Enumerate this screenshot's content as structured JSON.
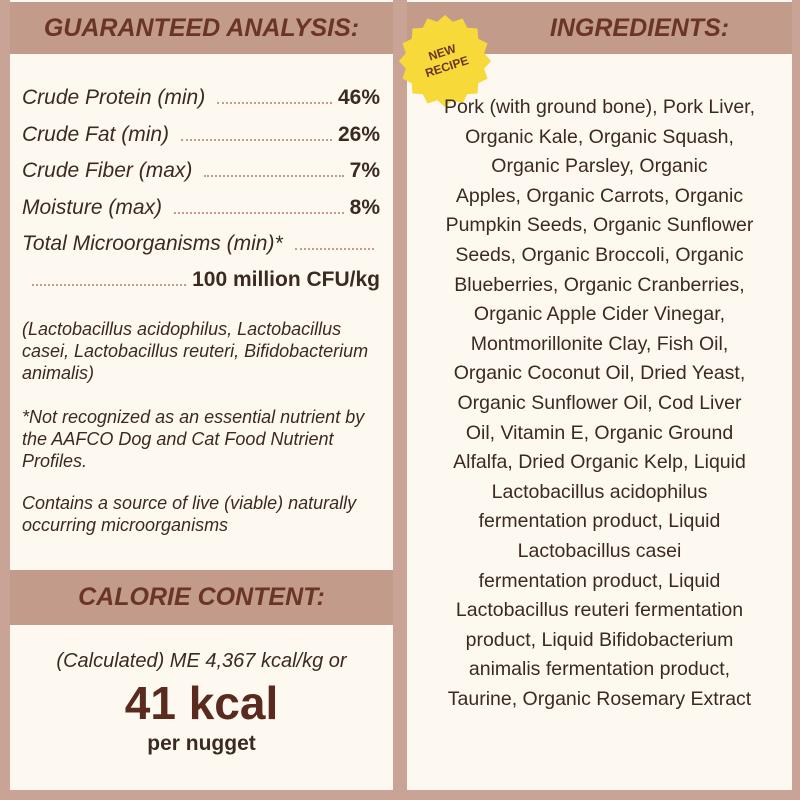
{
  "analysis": {
    "title": "GUARANTEED ANALYSIS:",
    "rows": [
      {
        "label": "Crude Protein (min)",
        "value": "46%"
      },
      {
        "label": "Crude Fat (min)",
        "value": "26%"
      },
      {
        "label": "Crude Fiber (max)",
        "value": "7%"
      },
      {
        "label": "Moisture (max)",
        "value": "8%"
      }
    ],
    "micro_label": "Total Microorganisms (min)*",
    "micro_value": "100 million CFU/kg",
    "notes": [
      "(Lactobacillus acidophilus, Lactobacillus casei, Lactobacillus reuteri, Bifidobacterium animalis)",
      "*Not recognized as an essential nutrient by the AAFCO Dog and Cat Food Nutrient Profiles.",
      "Contains a source of live (viable) naturally occurring microorganisms"
    ]
  },
  "calorie": {
    "title": "CALORIE CONTENT:",
    "calculated": "(Calculated) ME 4,367 kcal/kg or",
    "big": "41 kcal",
    "unit": "per nugget"
  },
  "ingredients": {
    "title": "INGREDIENTS:",
    "badge": [
      "NEW",
      "RECIPE"
    ],
    "lines": [
      "Pork (with ground bone), Pork Liver,",
      "Organic Kale, Organic Squash,",
      "Organic Parsley, Organic",
      "Apples, Organic Carrots, Organic",
      "Pumpkin Seeds, Organic Sunflower",
      "Seeds, Organic Broccoli, Organic",
      "Blueberries, Organic Cranberries,",
      "Organic Apple Cider Vinegar,",
      "Montmorillonite Clay, Fish Oil,",
      "Organic Coconut Oil, Dried Yeast,",
      "Organic Sunflower Oil, Cod Liver",
      "Oil, Vitamin E, Organic Ground",
      "Alfalfa, Dried Organic Kelp, Liquid",
      "Lactobacillus acidophilus",
      "fermentation product, Liquid",
      "Lactobacillus casei",
      "fermentation product, Liquid",
      "Lactobacillus reuteri fermentation",
      "product, Liquid Bifidobacterium",
      "animalis fermentation product,",
      "Taurine, Organic Rosemary Extract"
    ]
  }
}
